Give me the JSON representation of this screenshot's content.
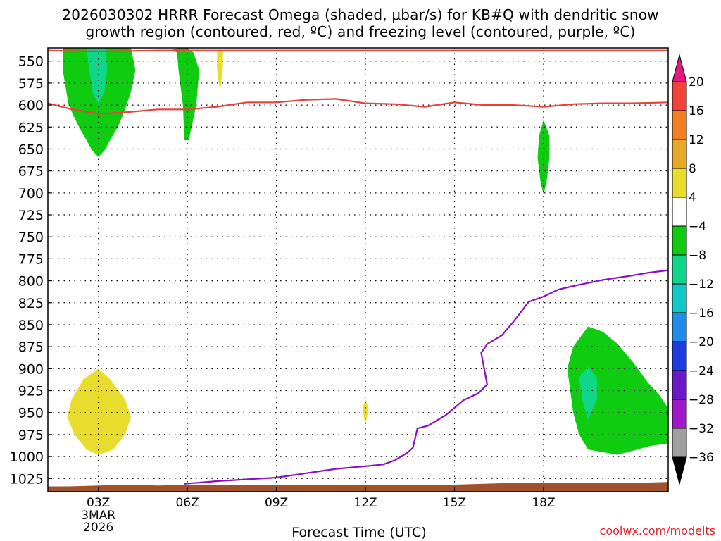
{
  "title_line1": "2026030302 HRRR Forecast Omega (shaded, μbar/s) for KB#Q with dendritic snow",
  "title_line2": "growth region (contoured, red, ºC) and freezing level (contoured, purple, ºC)",
  "credit": "coolwx.com/modelts",
  "colors": {
    "dgz_line": "#e8403a",
    "freezing_line": "#8a10c8",
    "terrain": "#a0522d",
    "frame": "#000000",
    "grid_dots": "#000000"
  },
  "chart_data": {
    "type": "heatmap",
    "title": "2026030302 HRRR Forecast Omega (shaded, μbar/s) for KB#Q with dendritic snow growth region (contoured, red, ºC) and freezing level (contoured, purple, ºC)",
    "xlabel": "Forecast Time (UTC)",
    "ylabel": "",
    "x_range_hours": [
      1.3,
      22.2
    ],
    "y_range_mb": [
      535,
      1040
    ],
    "y_scale": "linear-pressure (inverted)",
    "grid": true,
    "x_ticks": [
      {
        "hour": 3,
        "label": "03Z",
        "sub": [
          "3MAR",
          "2026"
        ]
      },
      {
        "hour": 6,
        "label": "06Z",
        "sub": []
      },
      {
        "hour": 9,
        "label": "09Z",
        "sub": []
      },
      {
        "hour": 12,
        "label": "12Z",
        "sub": []
      },
      {
        "hour": 15,
        "label": "15Z",
        "sub": []
      },
      {
        "hour": 18,
        "label": "18Z",
        "sub": []
      }
    ],
    "y_ticks": [
      550,
      575,
      600,
      625,
      650,
      675,
      700,
      725,
      750,
      775,
      800,
      825,
      850,
      875,
      900,
      925,
      950,
      975,
      1000,
      1025
    ],
    "colorbar": {
      "labels": [
        "20",
        "16",
        "12",
        "8",
        "4",
        "−4",
        "−8",
        "−12",
        "−16",
        "−20",
        "−24",
        "−28",
        "−32",
        "−36"
      ],
      "levels": [
        20,
        16,
        12,
        8,
        4,
        -4,
        -8,
        -12,
        -16,
        -20,
        -24,
        -28,
        -32,
        -36
      ],
      "bins": [
        {
          "range": [
            20,
            99
          ],
          "color": "#e8177f",
          "shape": "top-arrow"
        },
        {
          "range": [
            16,
            20
          ],
          "color": "#f04238"
        },
        {
          "range": [
            12,
            16
          ],
          "color": "#f08020"
        },
        {
          "range": [
            8,
            12
          ],
          "color": "#e8a828"
        },
        {
          "range": [
            4,
            8
          ],
          "color": "#e8dc2c"
        },
        {
          "range": [
            -4,
            4
          ],
          "color": "#ffffff"
        },
        {
          "range": [
            -8,
            -4
          ],
          "color": "#10cc10"
        },
        {
          "range": [
            -12,
            -8
          ],
          "color": "#10d68c"
        },
        {
          "range": [
            -16,
            -12
          ],
          "color": "#10c8c8"
        },
        {
          "range": [
            -20,
            -16
          ],
          "color": "#1e8ce8"
        },
        {
          "range": [
            -24,
            -20
          ],
          "color": "#1e3ce0"
        },
        {
          "range": [
            -28,
            -24
          ],
          "color": "#6a18c8"
        },
        {
          "range": [
            -32,
            -28
          ],
          "color": "#a018c8"
        },
        {
          "range": [
            -36,
            -32
          ],
          "color": "#a0a0a0"
        },
        {
          "range": [
            -99,
            -36
          ],
          "color": "#000000",
          "shape": "bottom-arrow"
        }
      ]
    },
    "series": [
      {
        "kind": "contour-line",
        "color": "#e8403a",
        "points": [
          [
            1.3,
            598
          ],
          [
            2,
            604
          ],
          [
            3,
            610
          ],
          [
            4,
            608
          ],
          [
            5,
            605
          ],
          [
            6,
            605
          ],
          [
            7,
            602
          ],
          [
            8,
            597
          ],
          [
            9,
            597
          ],
          [
            10,
            594
          ],
          [
            11,
            593
          ],
          [
            12,
            598
          ],
          [
            13,
            599
          ],
          [
            14,
            602
          ],
          [
            15,
            597
          ],
          [
            16,
            600
          ],
          [
            17,
            600
          ],
          [
            18,
            602
          ],
          [
            19,
            599
          ],
          [
            20,
            598
          ],
          [
            21,
            598
          ],
          [
            22.2,
            597
          ]
        ]
      },
      {
        "kind": "contour-line",
        "color": "#e8403a",
        "points": [
          [
            1.3,
            538
          ],
          [
            3,
            539
          ],
          [
            5,
            538
          ],
          [
            8,
            538
          ],
          [
            12,
            538
          ],
          [
            17,
            538
          ],
          [
            18,
            538
          ],
          [
            22.2,
            538
          ]
        ]
      },
      {
        "kind": "contour-line",
        "color": "#8a10c8",
        "points": [
          [
            5.9,
            1031
          ],
          [
            7,
            1028
          ],
          [
            8,
            1026
          ],
          [
            9,
            1024
          ],
          [
            10,
            1019
          ],
          [
            11,
            1014
          ],
          [
            12,
            1011
          ],
          [
            12.6,
            1009
          ],
          [
            13,
            1004
          ],
          [
            13.4,
            996
          ],
          [
            13.6,
            990
          ],
          [
            13.75,
            968
          ],
          [
            14.1,
            965
          ],
          [
            14.7,
            953
          ],
          [
            15.3,
            936
          ],
          [
            15.8,
            928
          ],
          [
            16.1,
            918
          ],
          [
            15.9,
            882
          ],
          [
            16.1,
            872
          ],
          [
            16.6,
            862
          ],
          [
            17,
            846
          ],
          [
            17.5,
            824
          ],
          [
            18,
            818
          ],
          [
            18.5,
            810
          ],
          [
            19,
            806
          ],
          [
            20,
            799
          ],
          [
            20.8,
            795
          ],
          [
            21.5,
            791
          ],
          [
            22.2,
            788
          ]
        ]
      },
      {
        "kind": "terrain",
        "color": "#a0522d",
        "points": [
          [
            1.3,
            1034
          ],
          [
            2,
            1034
          ],
          [
            3,
            1033
          ],
          [
            4,
            1032
          ],
          [
            5,
            1033
          ],
          [
            6,
            1032
          ],
          [
            8,
            1032
          ],
          [
            10,
            1032
          ],
          [
            12,
            1032
          ],
          [
            14,
            1032
          ],
          [
            15,
            1032
          ],
          [
            16,
            1031
          ],
          [
            17,
            1030
          ],
          [
            18,
            1030
          ],
          [
            19,
            1030
          ],
          [
            20,
            1030
          ],
          [
            21,
            1030
          ],
          [
            22.2,
            1029
          ]
        ]
      }
    ],
    "shaded_regions": [
      {
        "value": -6,
        "polygon": [
          [
            1.8,
            535
          ],
          [
            2.3,
            535
          ],
          [
            2.9,
            535
          ],
          [
            3.4,
            535
          ],
          [
            3.9,
            535
          ],
          [
            4.1,
            535
          ],
          [
            4.25,
            560
          ],
          [
            4.1,
            585
          ],
          [
            3.9,
            605
          ],
          [
            3.7,
            622
          ],
          [
            3.4,
            640
          ],
          [
            3.2,
            652
          ],
          [
            3.0,
            659
          ],
          [
            2.8,
            652
          ],
          [
            2.6,
            640
          ],
          [
            2.3,
            622
          ],
          [
            2.0,
            600
          ],
          [
            1.8,
            560
          ]
        ]
      },
      {
        "value": -10,
        "polygon": [
          [
            2.6,
            535
          ],
          [
            3.25,
            535
          ],
          [
            3.3,
            560
          ],
          [
            3.2,
            585
          ],
          [
            3.0,
            598
          ],
          [
            2.8,
            585
          ],
          [
            2.7,
            560
          ]
        ]
      },
      {
        "value": -6,
        "polygon": [
          [
            5.4,
            538
          ],
          [
            5.65,
            540
          ],
          [
            5.7,
            560
          ],
          [
            5.85,
            600
          ],
          [
            5.9,
            640
          ],
          [
            6.05,
            640
          ],
          [
            6.3,
            600
          ],
          [
            6.4,
            560
          ],
          [
            6.2,
            540
          ],
          [
            6.0,
            535
          ],
          [
            5.7,
            535
          ]
        ]
      },
      {
        "value": 6,
        "polygon": [
          [
            7.0,
            538
          ],
          [
            7.2,
            538
          ],
          [
            7.2,
            555
          ],
          [
            7.1,
            585
          ],
          [
            7.0,
            560
          ]
        ]
      },
      {
        "value": -6,
        "polygon": [
          [
            18.0,
            617
          ],
          [
            18.2,
            635
          ],
          [
            18.2,
            660
          ],
          [
            18.1,
            688
          ],
          [
            18.0,
            702
          ],
          [
            17.9,
            688
          ],
          [
            17.8,
            660
          ],
          [
            17.85,
            635
          ]
        ]
      },
      {
        "value": 6,
        "polygon": [
          [
            3.0,
            900
          ],
          [
            3.4,
            912
          ],
          [
            3.9,
            935
          ],
          [
            4.1,
            955
          ],
          [
            3.9,
            975
          ],
          [
            3.5,
            992
          ],
          [
            3.0,
            998
          ],
          [
            2.6,
            992
          ],
          [
            2.2,
            975
          ],
          [
            1.95,
            955
          ],
          [
            2.1,
            935
          ],
          [
            2.5,
            912
          ]
        ]
      },
      {
        "value": 6,
        "polygon": [
          [
            12.0,
            935
          ],
          [
            12.1,
            945
          ],
          [
            12.0,
            965
          ],
          [
            11.9,
            945
          ]
        ]
      },
      {
        "value": -6,
        "polygon": [
          [
            19.5,
            852
          ],
          [
            20.0,
            858
          ],
          [
            20.5,
            872
          ],
          [
            21.0,
            892
          ],
          [
            21.5,
            915
          ],
          [
            21.9,
            930
          ],
          [
            22.2,
            945
          ],
          [
            22.2,
            985
          ],
          [
            21.6,
            988
          ],
          [
            20.5,
            998
          ],
          [
            19.5,
            992
          ],
          [
            19.2,
            975
          ],
          [
            19.0,
            950
          ],
          [
            18.9,
            925
          ],
          [
            18.8,
            900
          ],
          [
            19.0,
            875
          ]
        ]
      },
      {
        "value": -10,
        "polygon": [
          [
            19.5,
            898
          ],
          [
            19.8,
            910
          ],
          [
            19.8,
            935
          ],
          [
            19.5,
            958
          ],
          [
            19.3,
            935
          ],
          [
            19.2,
            910
          ]
        ]
      }
    ]
  }
}
